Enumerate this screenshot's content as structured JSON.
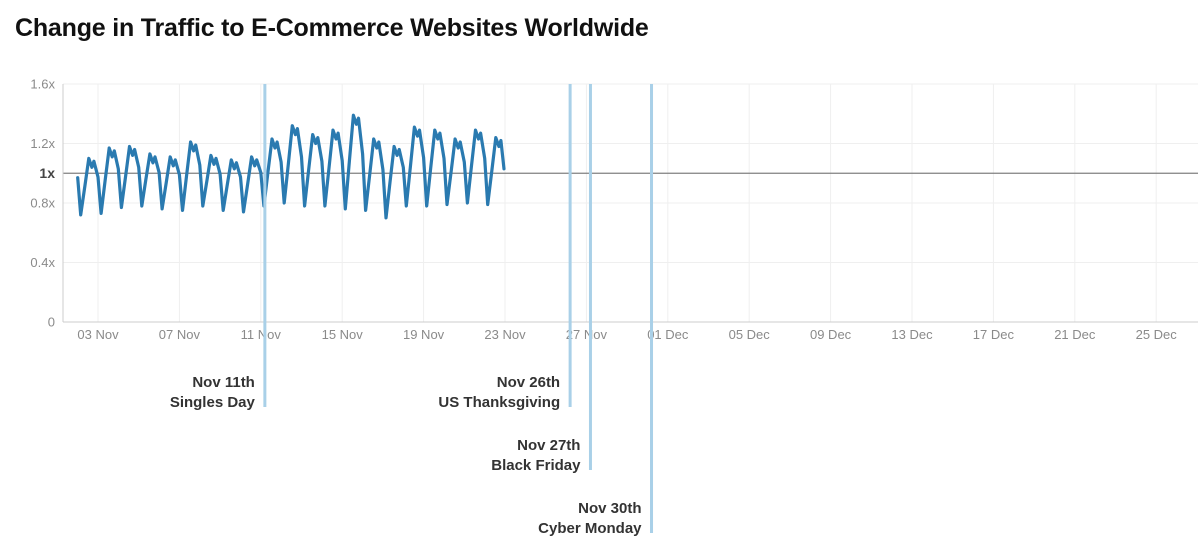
{
  "chart_data": {
    "type": "line",
    "title": "Change in Traffic to E-Commerce Websites Worldwide",
    "xlabel": "",
    "ylabel": "",
    "x_range": [
      "2020-11-01",
      "2020-12-29"
    ],
    "ylim": [
      0,
      1.6
    ],
    "grid": true,
    "legend": "none",
    "yticks": [
      {
        "value": 0,
        "label": "0"
      },
      {
        "value": 0.4,
        "label": "0.4x"
      },
      {
        "value": 0.8,
        "label": "0.8x"
      },
      {
        "value": 1.0,
        "label": "1x",
        "emphasis": true
      },
      {
        "value": 1.2,
        "label": "1.2x"
      },
      {
        "value": 1.6,
        "label": "1.6x"
      }
    ],
    "xticks": [
      {
        "date": "2020-11-03",
        "label": "03 Nov"
      },
      {
        "date": "2020-11-07",
        "label": "07 Nov"
      },
      {
        "date": "2020-11-11",
        "label": "11 Nov"
      },
      {
        "date": "2020-11-15",
        "label": "15 Nov"
      },
      {
        "date": "2020-11-19",
        "label": "19 Nov"
      },
      {
        "date": "2020-11-23",
        "label": "23 Nov"
      },
      {
        "date": "2020-11-27",
        "label": "27 Nov"
      },
      {
        "date": "2020-12-01",
        "label": "01 Dec"
      },
      {
        "date": "2020-12-05",
        "label": "05 Dec"
      },
      {
        "date": "2020-12-09",
        "label": "09 Dec"
      },
      {
        "date": "2020-12-13",
        "label": "13 Dec"
      },
      {
        "date": "2020-12-17",
        "label": "17 Dec"
      },
      {
        "date": "2020-12-21",
        "label": "21 Dec"
      },
      {
        "date": "2020-12-25",
        "label": "25 Dec"
      }
    ],
    "baseline": 1.0,
    "series": [
      {
        "color": "#2a7ab0",
        "daily": [
          {
            "date": "2020-11-02",
            "low": 0.72,
            "high": 1.1
          },
          {
            "date": "2020-11-03",
            "low": 0.73,
            "high": 1.17
          },
          {
            "date": "2020-11-04",
            "low": 0.77,
            "high": 1.18
          },
          {
            "date": "2020-11-05",
            "low": 0.78,
            "high": 1.13
          },
          {
            "date": "2020-11-06",
            "low": 0.76,
            "high": 1.11
          },
          {
            "date": "2020-11-07",
            "low": 0.75,
            "high": 1.21
          },
          {
            "date": "2020-11-08",
            "low": 0.78,
            "high": 1.12
          },
          {
            "date": "2020-11-09",
            "low": 0.75,
            "high": 1.09
          },
          {
            "date": "2020-11-10",
            "low": 0.74,
            "high": 1.11
          },
          {
            "date": "2020-11-11",
            "low": 0.78,
            "high": 1.23
          },
          {
            "date": "2020-11-12",
            "low": 0.8,
            "high": 1.32
          },
          {
            "date": "2020-11-13",
            "low": 0.78,
            "high": 1.26
          },
          {
            "date": "2020-11-14",
            "low": 0.78,
            "high": 1.29
          },
          {
            "date": "2020-11-15",
            "low": 0.76,
            "high": 1.39
          },
          {
            "date": "2020-11-16",
            "low": 0.75,
            "high": 1.23
          },
          {
            "date": "2020-11-17",
            "low": 0.7,
            "high": 1.18
          },
          {
            "date": "2020-11-18",
            "low": 0.78,
            "high": 1.31
          },
          {
            "date": "2020-11-19",
            "low": 0.78,
            "high": 1.29
          },
          {
            "date": "2020-11-20",
            "low": 0.79,
            "high": 1.23
          },
          {
            "date": "2020-11-21",
            "low": 0.8,
            "high": 1.29
          },
          {
            "date": "2020-11-22",
            "low": 0.79,
            "high": 1.24
          }
        ],
        "end": {
          "date": "2020-11-22",
          "value": 1.03
        }
      }
    ],
    "annotations": [
      {
        "date": "2020-11-11",
        "line1": "Nov 11th",
        "line2": "Singles Day",
        "level": 1
      },
      {
        "date": "2020-11-26",
        "line1": "Nov 26th",
        "line2": "US Thanksgiving",
        "level": 1
      },
      {
        "date": "2020-11-27",
        "line1": "Nov 27th",
        "line2": "Black Friday",
        "level": 2
      },
      {
        "date": "2020-11-30",
        "line1": "Nov 30th",
        "line2": "Cyber Monday",
        "level": 3
      }
    ],
    "colors": {
      "line": "#2a7ab0",
      "annotation_line": "#a9d0e8",
      "baseline": "#808080",
      "grid": "#efefef",
      "axis": "#cccccc"
    }
  }
}
